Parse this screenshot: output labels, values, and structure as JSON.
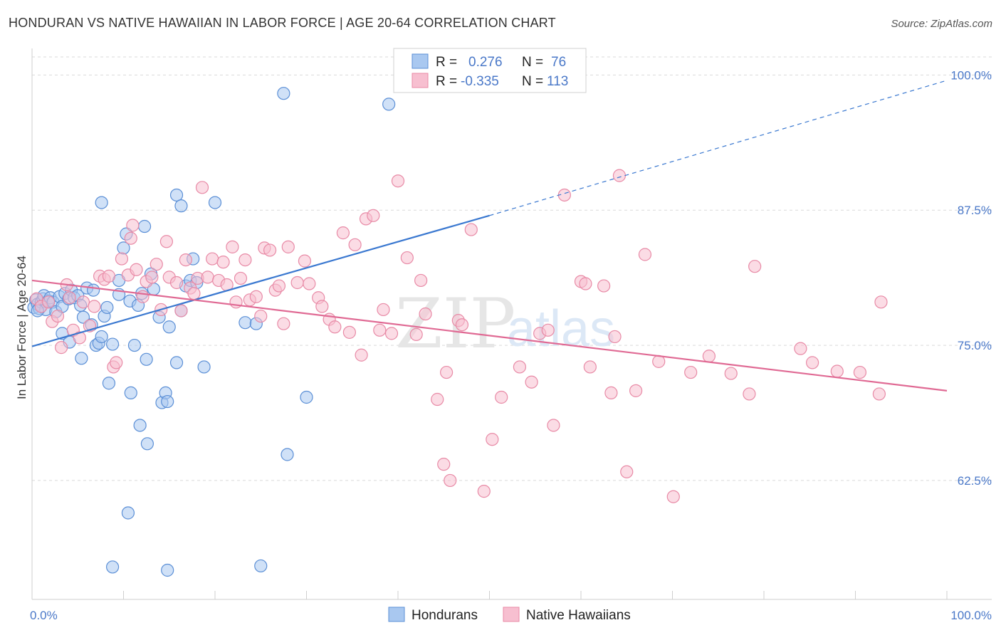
{
  "header": {
    "title": "HONDURAN VS NATIVE HAWAIIAN IN LABOR FORCE | AGE 20-64 CORRELATION CHART",
    "source": "Source: ZipAtlas.com"
  },
  "watermark": {
    "zip": "ZIP",
    "atlas": "atlas"
  },
  "legend": {
    "hondurans": {
      "r_label": "R =",
      "r_value": "0.276",
      "n_label": "N =",
      "n_value": "76"
    },
    "hawaiians": {
      "r_label": "R =",
      "r_value": "-0.335",
      "n_label": "N =",
      "n_value": "113"
    }
  },
  "colors": {
    "blue_fill": "#a9c8f0",
    "blue_stroke": "#5b8fd6",
    "blue_line": "#3a78d0",
    "pink_fill": "#f7bfd0",
    "pink_stroke": "#e88aa6",
    "pink_line": "#e06a94",
    "grid": "#d9d9d9",
    "tick_text": "#4a78c8"
  },
  "chart_data": {
    "type": "scatter",
    "title": "HONDURAN VS NATIVE HAWAIIAN IN LABOR FORCE | AGE 20-64 CORRELATION CHART",
    "xlabel": "",
    "ylabel": "In Labor Force | Age 20-64",
    "xlim": [
      0,
      100
    ],
    "ylim": [
      51.5,
      102
    ],
    "x_tick_labels": [
      "0.0%",
      "100.0%"
    ],
    "y_ticks": [
      62.5,
      75.0,
      87.5,
      100.0
    ],
    "y_tick_labels": [
      "62.5%",
      "75.0%",
      "87.5%",
      "100.0%"
    ],
    "grid": true,
    "legend_position": "bottom-center",
    "series": [
      {
        "name": "Hondurans",
        "r": 0.276,
        "n": 76,
        "trend": {
          "x0": 0,
          "y0": 74.9,
          "x1": 50,
          "y1": 87.0,
          "dashed_to_x": 100,
          "dashed_to_y": 99.5
        },
        "points": [
          [
            0.2,
            78.5
          ],
          [
            0.4,
            79.2
          ],
          [
            0.6,
            78.8
          ],
          [
            0.8,
            78.4
          ],
          [
            1.0,
            79.0
          ],
          [
            1.2,
            79.3
          ],
          [
            1.3,
            79.6
          ],
          [
            1.5,
            78.3
          ],
          [
            1.8,
            79.1
          ],
          [
            2.0,
            79.4
          ],
          [
            2.3,
            79.0
          ],
          [
            2.6,
            78.1
          ],
          [
            3.0,
            79.5
          ],
          [
            3.3,
            78.6
          ],
          [
            3.6,
            79.8
          ],
          [
            4.0,
            79.3
          ],
          [
            4.3,
            80.1
          ],
          [
            4.6,
            79.4
          ],
          [
            5.0,
            79.6
          ],
          [
            5.3,
            78.7
          ],
          [
            5.6,
            77.6
          ],
          [
            6.0,
            80.3
          ],
          [
            6.5,
            76.9
          ],
          [
            6.7,
            80.1
          ],
          [
            7.0,
            75.0
          ],
          [
            7.3,
            75.2
          ],
          [
            7.6,
            75.8
          ],
          [
            7.9,
            77.7
          ],
          [
            8.2,
            78.5
          ],
          [
            8.8,
            75.1
          ],
          [
            9.5,
            79.7
          ],
          [
            9.5,
            81.0
          ],
          [
            10.0,
            84.0
          ],
          [
            10.7,
            79.1
          ],
          [
            11.2,
            75.0
          ],
          [
            11.6,
            78.7
          ],
          [
            12.0,
            79.8
          ],
          [
            12.5,
            73.7
          ],
          [
            13.0,
            81.6
          ],
          [
            13.3,
            80.2
          ],
          [
            13.9,
            77.6
          ],
          [
            14.2,
            69.7
          ],
          [
            14.6,
            70.6
          ],
          [
            14.8,
            69.8
          ],
          [
            15.0,
            76.7
          ],
          [
            15.8,
            73.4
          ],
          [
            16.3,
            78.2
          ],
          [
            16.8,
            80.5
          ],
          [
            17.3,
            81.0
          ],
          [
            17.6,
            83.0
          ],
          [
            18.0,
            80.8
          ],
          [
            18.8,
            73.0
          ],
          [
            20.0,
            88.2
          ],
          [
            23.3,
            77.1
          ],
          [
            24.5,
            77.0
          ],
          [
            27.5,
            98.3
          ],
          [
            27.9,
            64.9
          ],
          [
            30.0,
            70.2
          ],
          [
            3.3,
            76.1
          ],
          [
            4.1,
            75.3
          ],
          [
            5.4,
            73.8
          ],
          [
            8.4,
            71.5
          ],
          [
            10.5,
            59.5
          ],
          [
            8.8,
            54.5
          ],
          [
            14.8,
            54.2
          ],
          [
            25.0,
            54.6
          ],
          [
            11.8,
            67.6
          ],
          [
            12.6,
            65.9
          ],
          [
            10.3,
            85.3
          ],
          [
            12.3,
            86.0
          ],
          [
            15.8,
            88.9
          ],
          [
            16.3,
            87.9
          ],
          [
            7.6,
            88.2
          ],
          [
            10.8,
            70.6
          ],
          [
            39.0,
            97.3
          ],
          [
            0.6,
            78.2
          ]
        ]
      },
      {
        "name": "Native Hawaiians",
        "r": -0.335,
        "n": 113,
        "trend": {
          "x0": 0,
          "y0": 81.0,
          "x1": 100,
          "y1": 70.8
        },
        "points": [
          [
            0.5,
            79.3
          ],
          [
            1.0,
            78.6
          ],
          [
            1.8,
            79.0
          ],
          [
            2.2,
            77.2
          ],
          [
            2.8,
            77.7
          ],
          [
            3.2,
            74.8
          ],
          [
            3.8,
            80.6
          ],
          [
            4.1,
            79.4
          ],
          [
            4.5,
            76.4
          ],
          [
            5.2,
            75.7
          ],
          [
            5.6,
            79.0
          ],
          [
            6.3,
            76.8
          ],
          [
            6.8,
            78.6
          ],
          [
            7.4,
            81.4
          ],
          [
            7.9,
            81.1
          ],
          [
            8.4,
            81.4
          ],
          [
            8.9,
            73.0
          ],
          [
            9.2,
            73.4
          ],
          [
            9.8,
            83.0
          ],
          [
            10.5,
            81.5
          ],
          [
            10.8,
            84.9
          ],
          [
            11.0,
            86.1
          ],
          [
            11.4,
            82.0
          ],
          [
            12.1,
            79.5
          ],
          [
            12.5,
            80.9
          ],
          [
            13.1,
            81.3
          ],
          [
            13.6,
            82.5
          ],
          [
            14.1,
            78.3
          ],
          [
            14.7,
            84.6
          ],
          [
            15.0,
            81.3
          ],
          [
            15.8,
            80.8
          ],
          [
            16.3,
            78.2
          ],
          [
            16.8,
            82.9
          ],
          [
            17.3,
            80.3
          ],
          [
            17.7,
            79.8
          ],
          [
            18.1,
            81.2
          ],
          [
            18.6,
            89.6
          ],
          [
            19.2,
            81.3
          ],
          [
            19.7,
            83.0
          ],
          [
            20.4,
            81.0
          ],
          [
            20.9,
            82.7
          ],
          [
            21.3,
            80.6
          ],
          [
            21.9,
            84.1
          ],
          [
            22.3,
            79.0
          ],
          [
            22.8,
            81.2
          ],
          [
            23.3,
            82.9
          ],
          [
            23.8,
            79.2
          ],
          [
            24.5,
            79.5
          ],
          [
            25.0,
            77.7
          ],
          [
            25.4,
            84.0
          ],
          [
            26.0,
            83.8
          ],
          [
            26.6,
            80.1
          ],
          [
            27.0,
            80.5
          ],
          [
            27.5,
            77.0
          ],
          [
            28.0,
            84.1
          ],
          [
            29.0,
            80.8
          ],
          [
            29.8,
            82.8
          ],
          [
            30.3,
            80.7
          ],
          [
            31.3,
            79.4
          ],
          [
            31.7,
            78.6
          ],
          [
            32.5,
            77.4
          ],
          [
            33.1,
            76.7
          ],
          [
            34.0,
            85.4
          ],
          [
            34.7,
            76.2
          ],
          [
            35.3,
            84.3
          ],
          [
            36.0,
            74.1
          ],
          [
            36.5,
            86.7
          ],
          [
            37.3,
            87.0
          ],
          [
            38.0,
            76.4
          ],
          [
            38.4,
            78.3
          ],
          [
            39.3,
            76.1
          ],
          [
            40.0,
            90.2
          ],
          [
            41.0,
            83.1
          ],
          [
            42.0,
            76.0
          ],
          [
            42.5,
            81.0
          ],
          [
            43.0,
            77.9
          ],
          [
            44.3,
            70.0
          ],
          [
            45.0,
            64.0
          ],
          [
            45.3,
            72.5
          ],
          [
            45.7,
            62.5
          ],
          [
            46.6,
            77.3
          ],
          [
            47.0,
            76.9
          ],
          [
            48.0,
            85.7
          ],
          [
            49.4,
            61.5
          ],
          [
            50.3,
            66.3
          ],
          [
            51.3,
            70.2
          ],
          [
            53.3,
            73.0
          ],
          [
            54.6,
            71.6
          ],
          [
            55.5,
            76.1
          ],
          [
            56.4,
            76.4
          ],
          [
            57.0,
            67.6
          ],
          [
            58.2,
            88.9
          ],
          [
            60.0,
            80.9
          ],
          [
            60.5,
            80.7
          ],
          [
            61.0,
            73.0
          ],
          [
            62.5,
            80.5
          ],
          [
            63.3,
            70.6
          ],
          [
            63.7,
            75.8
          ],
          [
            64.2,
            90.7
          ],
          [
            65.0,
            63.3
          ],
          [
            66.0,
            70.8
          ],
          [
            67.0,
            83.4
          ],
          [
            68.5,
            73.5
          ],
          [
            70.1,
            61.0
          ],
          [
            72.0,
            72.5
          ],
          [
            74.0,
            74.0
          ],
          [
            76.4,
            72.4
          ],
          [
            78.4,
            70.5
          ],
          [
            79.0,
            82.3
          ],
          [
            84.0,
            74.7
          ],
          [
            85.3,
            73.4
          ],
          [
            88.0,
            72.6
          ],
          [
            90.5,
            72.5
          ],
          [
            92.6,
            70.5
          ],
          [
            92.8,
            79.0
          ]
        ]
      }
    ]
  },
  "bottom_legend": {
    "hondurans": "Hondurans",
    "hawaiians": "Native Hawaiians"
  }
}
